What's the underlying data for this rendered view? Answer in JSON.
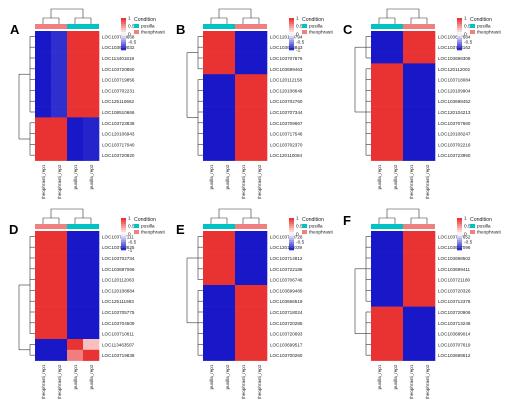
{
  "chart_data": [
    {
      "type": "heatmap",
      "panel_label": "A",
      "scale_ticks": [
        1,
        0.5,
        0,
        -0.5
      ],
      "legend": {
        "title": "Condition",
        "entries": [
          {
            "name": "pusilla",
            "color": "#00c4c4"
          },
          {
            "name": "theophrasti",
            "color": "#f08080"
          }
        ]
      },
      "condition_bar": [
        "theophrasti",
        "theophrasti",
        "pusilla",
        "pusilla"
      ],
      "columns": [
        "theophrasti_rep1",
        "theophrasti_rep2",
        "pusilla_rep1",
        "pusilla_rep2"
      ],
      "rows": [
        "LOC103700668",
        "LOC103699032",
        "LOC113401818",
        "LOC103720850",
        "LOC103719856",
        "LOC103702231",
        "LOC125110662",
        "LOC108510666",
        "LOC103723838",
        "LOC120106943",
        "LOC103717040",
        "LOC103720820"
      ],
      "values": [
        [
          -1.0,
          -0.9,
          0.95,
          0.95
        ],
        [
          -1.0,
          -0.9,
          0.95,
          0.95
        ],
        [
          -1.0,
          -0.9,
          0.95,
          0.95
        ],
        [
          -1.0,
          -0.9,
          0.95,
          0.95
        ],
        [
          -1.0,
          -0.9,
          0.95,
          0.95
        ],
        [
          -1.0,
          -0.9,
          0.95,
          0.95
        ],
        [
          -1.0,
          -0.9,
          0.95,
          0.95
        ],
        [
          -1.0,
          -0.9,
          0.95,
          0.95
        ],
        [
          0.95,
          0.95,
          -1.0,
          -0.95
        ],
        [
          0.95,
          0.95,
          -1.0,
          -0.95
        ],
        [
          0.95,
          0.95,
          -1.0,
          -0.95
        ],
        [
          0.95,
          0.95,
          -1.0,
          -0.95
        ]
      ]
    },
    {
      "type": "heatmap",
      "panel_label": "B",
      "scale_ticks": [
        1,
        0.5,
        0,
        -0.5,
        -1
      ],
      "legend": {
        "title": "Condition",
        "entries": [
          {
            "name": "pusilla",
            "color": "#00c4c4"
          },
          {
            "name": "theophrasti",
            "color": "#f08080"
          }
        ]
      },
      "condition_bar": [
        "pusilla",
        "pusilla",
        "theophrasti",
        "theophrasti"
      ],
      "columns": [
        "pusilla_rep1",
        "pusilla_rep2",
        "theophrasti_rep1",
        "theophrasti_rep2"
      ],
      "rows": [
        "LOC120109794",
        "LOC103696843",
        "LOC103707876",
        "LOC103699463",
        "LOC120112158",
        "LOC120108649",
        "LOC103702760",
        "LOC103707344",
        "LOC103709667",
        "LOC103717546",
        "LOC103702370",
        "LOC120110084"
      ],
      "values": [
        [
          0.95,
          0.95,
          -1.0,
          -1.0
        ],
        [
          0.95,
          0.95,
          -1.0,
          -1.0
        ],
        [
          0.95,
          0.95,
          -1.0,
          -1.0
        ],
        [
          0.95,
          0.95,
          -1.0,
          -1.0
        ],
        [
          -1.0,
          -1.0,
          0.95,
          0.95
        ],
        [
          -1.0,
          -1.0,
          0.95,
          0.95
        ],
        [
          -1.0,
          -1.0,
          0.95,
          0.95
        ],
        [
          -1.0,
          -1.0,
          0.95,
          0.95
        ],
        [
          -1.0,
          -1.0,
          0.95,
          0.95
        ],
        [
          -1.0,
          -1.0,
          0.95,
          0.95
        ],
        [
          -1.0,
          -1.0,
          0.95,
          0.95
        ],
        [
          -1.0,
          -1.0,
          0.95,
          0.95
        ]
      ]
    },
    {
      "type": "heatmap",
      "panel_label": "C",
      "scale_ticks": [
        1,
        0.5,
        0,
        -0.5
      ],
      "legend": {
        "title": "Condition",
        "entries": [
          {
            "name": "pusilla",
            "color": "#00c4c4"
          },
          {
            "name": "theophrasti",
            "color": "#f08080"
          }
        ]
      },
      "condition_bar": [
        "pusilla",
        "pusilla",
        "theophrasti",
        "theophrasti"
      ],
      "columns": [
        "pusilla_rep1",
        "pusilla_rep2",
        "theophrasti_rep1",
        "theophrasti_rep2"
      ],
      "rows": [
        "LOC103697684",
        "LOC103718162",
        "LOC103698308",
        "LOC120112002",
        "LOC103718084",
        "LOC120109904",
        "LOC103698452",
        "LOC120104213",
        "LOC103707660",
        "LOC120108247",
        "LOC103702216",
        "LOC103723950"
      ],
      "values": [
        [
          -1.0,
          -1.0,
          0.95,
          0.95
        ],
        [
          -1.0,
          -1.0,
          0.95,
          0.95
        ],
        [
          -1.0,
          -1.0,
          0.95,
          0.95
        ],
        [
          0.95,
          0.95,
          -1.0,
          -1.0
        ],
        [
          0.95,
          0.95,
          -1.0,
          -1.0
        ],
        [
          0.95,
          0.95,
          -1.0,
          -1.0
        ],
        [
          0.95,
          0.95,
          -1.0,
          -1.0
        ],
        [
          0.95,
          0.95,
          -1.0,
          -1.0
        ],
        [
          0.95,
          0.95,
          -1.0,
          -1.0
        ],
        [
          0.95,
          0.95,
          -1.0,
          -1.0
        ],
        [
          0.95,
          0.95,
          -1.0,
          -1.0
        ],
        [
          0.95,
          0.95,
          -1.0,
          -1.0
        ]
      ]
    },
    {
      "type": "heatmap",
      "panel_label": "D",
      "scale_ticks": [
        1,
        0.5,
        0,
        -0.5,
        -1
      ],
      "legend": {
        "title": "Condition",
        "entries": [
          {
            "name": "pusilla",
            "color": "#00c4c4"
          },
          {
            "name": "theophrasti",
            "color": "#f08080"
          }
        ]
      },
      "condition_bar": [
        "theophrasti",
        "theophrasti",
        "pusilla",
        "pusilla"
      ],
      "columns": [
        "theophrasti_rep1",
        "theophrasti_rep2",
        "pusilla_rep1",
        "pusilla_rep2"
      ],
      "rows": [
        "LOC103707111",
        "LOC103713625",
        "LOC103702734",
        "LOC103697066",
        "LOC120112063",
        "LOC120108684",
        "LOC125111693",
        "LOC103705775",
        "LOC103704509",
        "LOC103710611",
        "LOC113463507",
        "LOC103719838"
      ],
      "values": [
        [
          0.95,
          0.95,
          -1.0,
          -1.0
        ],
        [
          0.95,
          0.95,
          -1.0,
          -1.0
        ],
        [
          0.95,
          0.95,
          -1.0,
          -1.0
        ],
        [
          0.95,
          0.95,
          -1.0,
          -1.0
        ],
        [
          0.95,
          0.95,
          -1.0,
          -1.0
        ],
        [
          0.95,
          0.95,
          -1.0,
          -1.0
        ],
        [
          0.95,
          0.95,
          -1.0,
          -1.0
        ],
        [
          0.95,
          0.95,
          -1.0,
          -1.0
        ],
        [
          0.95,
          0.95,
          -1.0,
          -1.0
        ],
        [
          0.95,
          0.95,
          -1.0,
          -1.0
        ],
        [
          -1.0,
          -1.0,
          0.95,
          0.3
        ],
        [
          -1.0,
          -1.0,
          0.6,
          0.95
        ]
      ]
    },
    {
      "type": "heatmap",
      "panel_label": "E",
      "scale_ticks": [
        1,
        0.5,
        0,
        -0.5
      ],
      "legend": {
        "title": "Condition",
        "entries": [
          {
            "name": "pusilla",
            "color": "#00c4c4"
          },
          {
            "name": "theophrasti",
            "color": "#f08080"
          }
        ]
      },
      "condition_bar": [
        "pusilla",
        "pusilla",
        "theophrasti",
        "theophrasti"
      ],
      "columns": [
        "pusilla_rep1",
        "pusilla_rep2",
        "theophrasti_rep1",
        "theophrasti_rep2"
      ],
      "rows": [
        "LOC103720728",
        "LOC120113039",
        "LOC103714812",
        "LOC103722186",
        "LOC103706746",
        "LOC103699489",
        "LOC103666519",
        "LOC103718024",
        "LOC103720285",
        "LOC103720693",
        "LOC103699517",
        "LOC103700260"
      ],
      "values": [
        [
          0.95,
          0.95,
          -1.0,
          -1.0
        ],
        [
          0.95,
          0.95,
          -1.0,
          -1.0
        ],
        [
          0.95,
          0.95,
          -1.0,
          -1.0
        ],
        [
          0.95,
          0.95,
          -1.0,
          -1.0
        ],
        [
          0.95,
          0.95,
          -1.0,
          -1.0
        ],
        [
          -1.0,
          -1.0,
          0.95,
          0.95
        ],
        [
          -1.0,
          -1.0,
          0.95,
          0.95
        ],
        [
          -1.0,
          -1.0,
          0.95,
          0.95
        ],
        [
          -1.0,
          -1.0,
          0.95,
          0.95
        ],
        [
          -1.0,
          -1.0,
          0.95,
          0.95
        ],
        [
          -1.0,
          -1.0,
          0.95,
          0.95
        ],
        [
          -1.0,
          -1.0,
          0.95,
          0.95
        ]
      ]
    },
    {
      "type": "heatmap",
      "panel_label": "F",
      "scale_ticks": [
        1,
        0.5,
        0,
        -0.5
      ],
      "legend": {
        "title": "Condition",
        "entries": [
          {
            "name": "pusilla",
            "color": "#00c4c4"
          },
          {
            "name": "theophrasti",
            "color": "#f08080"
          }
        ]
      },
      "condition_bar": [
        "pusilla",
        "pusilla",
        "theophrasti",
        "theophrasti"
      ],
      "columns": [
        "pusilla_rep1",
        "pusilla_rep2",
        "theophrasti_rep1",
        "theophrasti_rep2"
      ],
      "rows": [
        "LOC103717652",
        "LOC103697096",
        "LOC103698502",
        "LOC103699411",
        "LOC103721180",
        "LOC103720326",
        "LOC103712378",
        "LOC103720906",
        "LOC103713248",
        "LOC103689014",
        "LOC103707619",
        "LOC103698612"
      ],
      "values": [
        [
          -1.0,
          -1.0,
          0.95,
          0.95
        ],
        [
          -1.0,
          -1.0,
          0.95,
          0.95
        ],
        [
          -1.0,
          -1.0,
          0.95,
          0.95
        ],
        [
          -1.0,
          -1.0,
          0.95,
          0.95
        ],
        [
          -1.0,
          -1.0,
          0.95,
          0.95
        ],
        [
          -1.0,
          -1.0,
          0.95,
          0.95
        ],
        [
          -1.0,
          -1.0,
          0.95,
          0.95
        ],
        [
          0.95,
          0.95,
          -1.0,
          -1.0
        ],
        [
          0.95,
          0.95,
          -1.0,
          -1.0
        ],
        [
          0.95,
          0.95,
          -1.0,
          -1.0
        ],
        [
          0.95,
          0.95,
          -1.0,
          -1.0
        ],
        [
          0.95,
          0.95,
          -1.0,
          -1.0
        ]
      ]
    }
  ]
}
